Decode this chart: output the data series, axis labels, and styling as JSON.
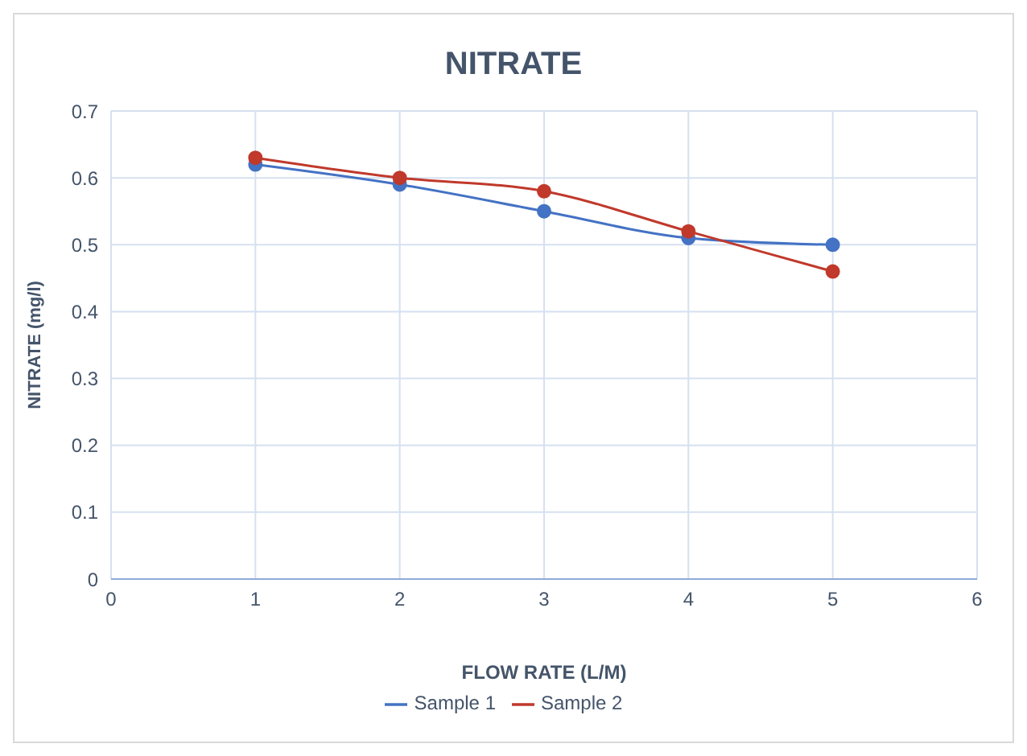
{
  "chart_data": {
    "type": "line",
    "title": "NITRATE",
    "xlabel": "FLOW RATE (L/M)",
    "ylabel": "NITRATE  (mg/l)",
    "x": [
      1,
      2,
      3,
      4,
      5
    ],
    "series": [
      {
        "name": "Sample 1",
        "color": "#4472c4",
        "values": [
          0.62,
          0.59,
          0.55,
          0.51,
          0.5
        ]
      },
      {
        "name": "Sample 2",
        "color": "#c0392b",
        "values": [
          0.63,
          0.6,
          0.58,
          0.52,
          0.46
        ]
      }
    ],
    "xlim": [
      0,
      6
    ],
    "xticks": [
      0,
      1,
      2,
      3,
      4,
      5,
      6
    ],
    "ylim": [
      0,
      0.7
    ],
    "yticks": [
      0,
      0.1,
      0.2,
      0.3,
      0.4,
      0.5,
      0.6,
      0.7
    ],
    "grid": true,
    "legend": "bottom",
    "marker": "circle",
    "line_style": "solid"
  }
}
